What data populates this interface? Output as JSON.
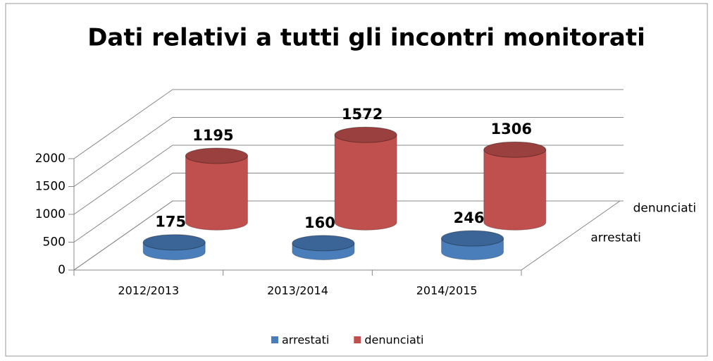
{
  "chart_data": {
    "type": "bar3d",
    "title": "Dati relativi a tutti gli incontri monitorati",
    "categories": [
      "2012/2013",
      "2013/2014",
      "2014/2015"
    ],
    "series": [
      {
        "name": "arrestati",
        "color": "#4a7ebb",
        "values": [
          175,
          160,
          246
        ]
      },
      {
        "name": "denunciati",
        "color": "#c0504d",
        "values": [
          1195,
          1572,
          1306
        ]
      }
    ],
    "ylim": [
      0,
      2000
    ],
    "yticks": [
      0,
      500,
      1000,
      1500,
      2000
    ],
    "grid": true,
    "legend": "bottom"
  }
}
